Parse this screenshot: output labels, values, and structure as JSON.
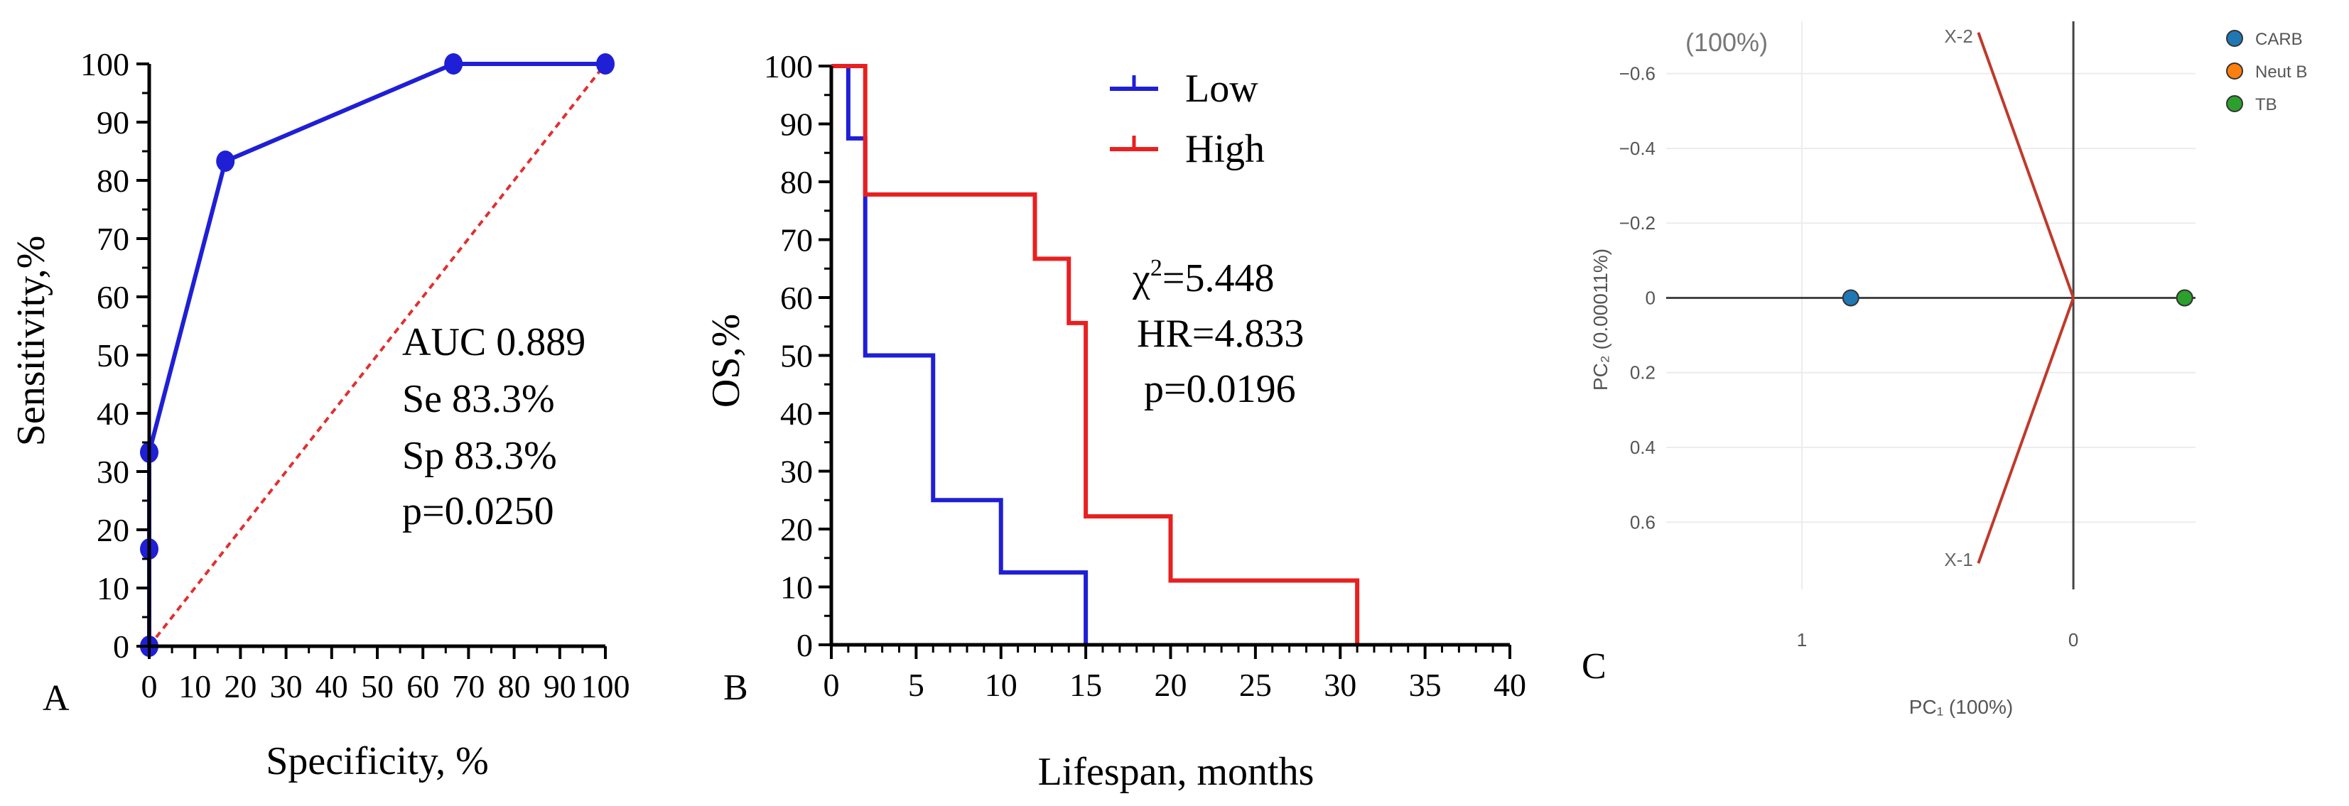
{
  "chart_data": [
    {
      "panel": "A",
      "type": "line",
      "subtype": "roc",
      "xlabel": "Specificity, %",
      "ylabel": "Sensitivity,%",
      "xlim": [
        0,
        100
      ],
      "ylim": [
        0,
        100
      ],
      "xticks": [
        0,
        10,
        20,
        30,
        40,
        50,
        60,
        70,
        80,
        90,
        100
      ],
      "yticks": [
        0,
        10,
        20,
        30,
        40,
        50,
        60,
        70,
        80,
        90,
        100
      ],
      "series": [
        {
          "name": "ROC",
          "color": "#1f1fd6",
          "x": [
            0,
            0,
            0,
            16.7,
            66.7,
            100
          ],
          "y": [
            0,
            16.7,
            33.3,
            83.3,
            100,
            100
          ]
        },
        {
          "name": "reference",
          "color": "#e03030",
          "style": "dotted",
          "x": [
            0,
            100
          ],
          "y": [
            0,
            100
          ]
        }
      ],
      "annotations": [
        "AUC 0.889",
        "Se 83.3%",
        "Sp 83.3%",
        "p=0.0250"
      ]
    },
    {
      "panel": "B",
      "type": "line",
      "subtype": "kaplan-meier",
      "xlabel": "Lifespan, months",
      "ylabel": "OS,%",
      "xlim": [
        0,
        40
      ],
      "ylim": [
        0,
        100
      ],
      "xticks": [
        0,
        5,
        10,
        15,
        20,
        25,
        30,
        35,
        40
      ],
      "yticks": [
        0,
        10,
        20,
        30,
        40,
        50,
        60,
        70,
        80,
        90,
        100
      ],
      "series": [
        {
          "name": "Low",
          "color": "#1f1fd6",
          "x": [
            0,
            1,
            1,
            2,
            2,
            6,
            6,
            10,
            10,
            15,
            15
          ],
          "y": [
            100,
            100,
            87.5,
            87.5,
            50,
            50,
            25,
            25,
            12.5,
            12.5,
            0
          ]
        },
        {
          "name": "High",
          "color": "#e82020",
          "x": [
            0,
            2,
            2,
            12,
            12,
            14,
            14,
            15,
            15,
            20,
            20,
            31,
            31
          ],
          "y": [
            100,
            100,
            77.8,
            77.8,
            66.7,
            66.7,
            55.6,
            55.6,
            22.2,
            22.2,
            11.1,
            11.1,
            0
          ]
        }
      ],
      "legend": [
        "Low",
        "High"
      ],
      "stats": {
        "chi_base": "χ",
        "chi_sup": "2",
        "chi_value": "=5.448",
        "hr": "HR=4.833",
        "p": "p=0.0196"
      }
    },
    {
      "panel": "C",
      "type": "scatter",
      "subtype": "pca-biplot",
      "xlabel": "PC₁ (100%)",
      "ylabel": "PC₂ (0.00011%)",
      "title_fragment": "(100%)",
      "xlim": [
        1.5,
        -0.45
      ],
      "ylim": [
        -0.74,
        0.78
      ],
      "xticks": [
        1,
        0
      ],
      "xtick_labels": [
        "1",
        "0"
      ],
      "yticks": [
        -0.6,
        -0.4,
        -0.2,
        0,
        0.2,
        0.4,
        0.6
      ],
      "ytick_labels": [
        "−0.6",
        "−0.4",
        "−0.2",
        "0",
        "0.2",
        "0.4",
        "0.6"
      ],
      "points": [
        {
          "name": "CARB",
          "color": "#1f77b4",
          "x": 0.82,
          "y": 0
        },
        {
          "name": "Neut B",
          "color": "#ff7f0e",
          "x": -0.41,
          "y": 0
        },
        {
          "name": "TB",
          "color": "#2ca02c",
          "x": -0.41,
          "y": 0
        }
      ],
      "loadings": [
        {
          "name": "X-2",
          "color": "#c0392b",
          "x": 0.35,
          "y": -0.71
        },
        {
          "name": "X-1",
          "color": "#c0392b",
          "x": 0.35,
          "y": 0.71
        }
      ],
      "legend": [
        "CARB",
        "Neut B",
        "TB"
      ]
    }
  ]
}
